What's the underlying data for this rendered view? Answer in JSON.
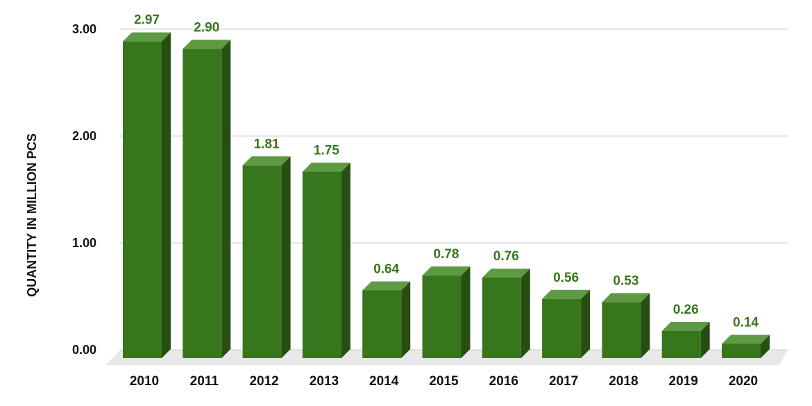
{
  "chart_data": {
    "type": "bar",
    "categories": [
      "2010",
      "2011",
      "2012",
      "2013",
      "2014",
      "2015",
      "2016",
      "2017",
      "2018",
      "2019",
      "2020"
    ],
    "values": [
      2.97,
      2.9,
      1.81,
      1.75,
      0.64,
      0.78,
      0.76,
      0.56,
      0.53,
      0.26,
      0.14
    ],
    "value_labels": [
      "2.97",
      "2.90",
      "1.81",
      "1.75",
      "0.64",
      "0.78",
      "0.76",
      "0.56",
      "0.53",
      "0.26",
      "0.14"
    ],
    "ylabel": "QUANTITY IN MILLION PCS",
    "ylim": [
      0,
      3
    ],
    "yticks": [
      0,
      1,
      2,
      3
    ],
    "ytick_labels": [
      "0.00",
      "1.00",
      "2.00",
      "3.00"
    ],
    "grid": true,
    "style": "3d-bar",
    "colors": {
      "bar_front": "#38761d",
      "bar_top": "#5e9a44",
      "bar_side": "#274e13",
      "data_label": "#38761d",
      "grid": "#cccccc",
      "floor": "#e8e8e8"
    }
  }
}
